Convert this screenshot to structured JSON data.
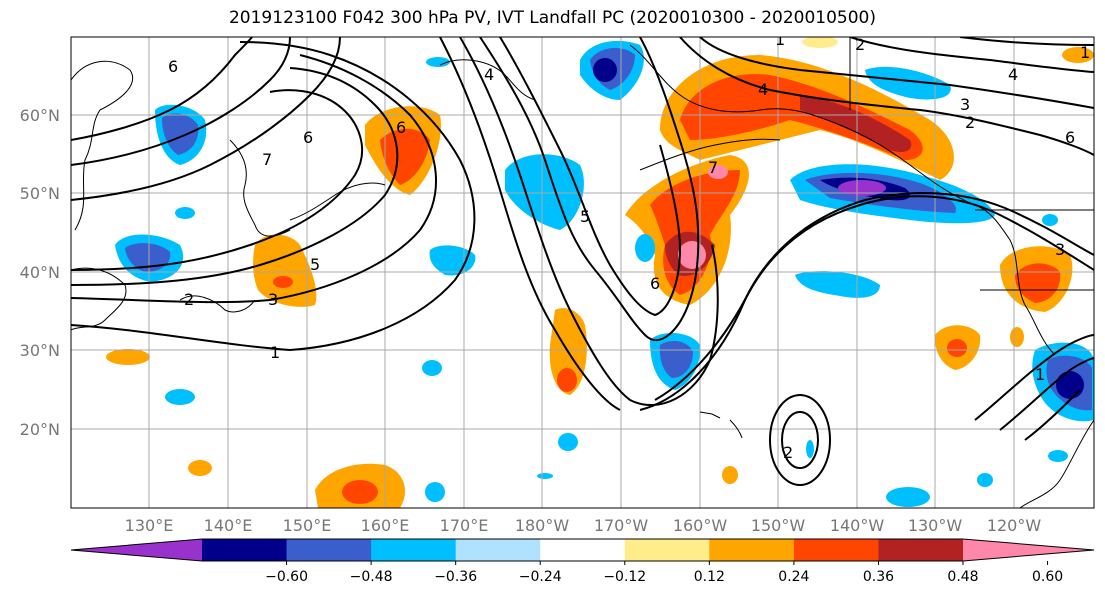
{
  "title": "2019123100 F042 300 hPa PV, IVT Landfall PC (2020010300 - 2020010500)",
  "map": {
    "lat_labels": [
      "60°N",
      "50°N",
      "40°N",
      "30°N",
      "20°N"
    ],
    "lon_labels": [
      "130°E",
      "140°E",
      "150°E",
      "160°E",
      "170°E",
      "180°W",
      "170°W",
      "160°W",
      "150°W",
      "140°W",
      "130°W",
      "120°W"
    ]
  },
  "contour_labels": [
    "6",
    "6",
    "7",
    "6",
    "5",
    "3",
    "2",
    "1",
    "4",
    "5",
    "6",
    "7",
    "4",
    "3",
    "2",
    "1",
    "6",
    "1",
    "2",
    "4",
    "3",
    "1",
    "2"
  ],
  "colorbar": {
    "tick_labels": [
      "−0.60",
      "−0.48",
      "−0.36",
      "−0.24",
      "−0.12",
      "0.12",
      "0.24",
      "0.36",
      "0.48",
      "0.60"
    ],
    "colors": [
      "#9932cc",
      "#00008b",
      "#3a5fcd",
      "#00bfff",
      "#b0e2ff",
      "#ffffff",
      "#ffec8b",
      "#ffa500",
      "#ff4500",
      "#b22222",
      "#ff88aa"
    ]
  }
}
